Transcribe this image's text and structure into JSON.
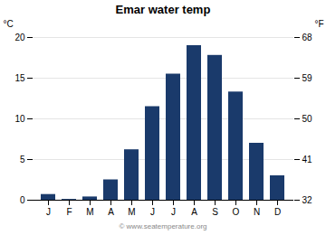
{
  "chart_data": {
    "type": "bar",
    "title": "Emar water temp",
    "categories": [
      "J",
      "F",
      "M",
      "A",
      "M",
      "J",
      "J",
      "A",
      "S",
      "O",
      "N",
      "D"
    ],
    "values": [
      0.7,
      0.1,
      0.4,
      2.5,
      6.2,
      11.5,
      15.5,
      19.0,
      17.8,
      13.3,
      7.0,
      3.0
    ],
    "color": "#1a3a6b",
    "ylabel": "°C",
    "y2label": "°F",
    "ylim": [
      0,
      20
    ],
    "yticks": [
      0,
      5,
      10,
      15,
      20
    ],
    "y2lim": [
      32,
      68
    ],
    "y2ticks": [
      32,
      41,
      50,
      59,
      68
    ],
    "grid": true,
    "annotations": [
      "© www.seatemperature.org"
    ]
  }
}
